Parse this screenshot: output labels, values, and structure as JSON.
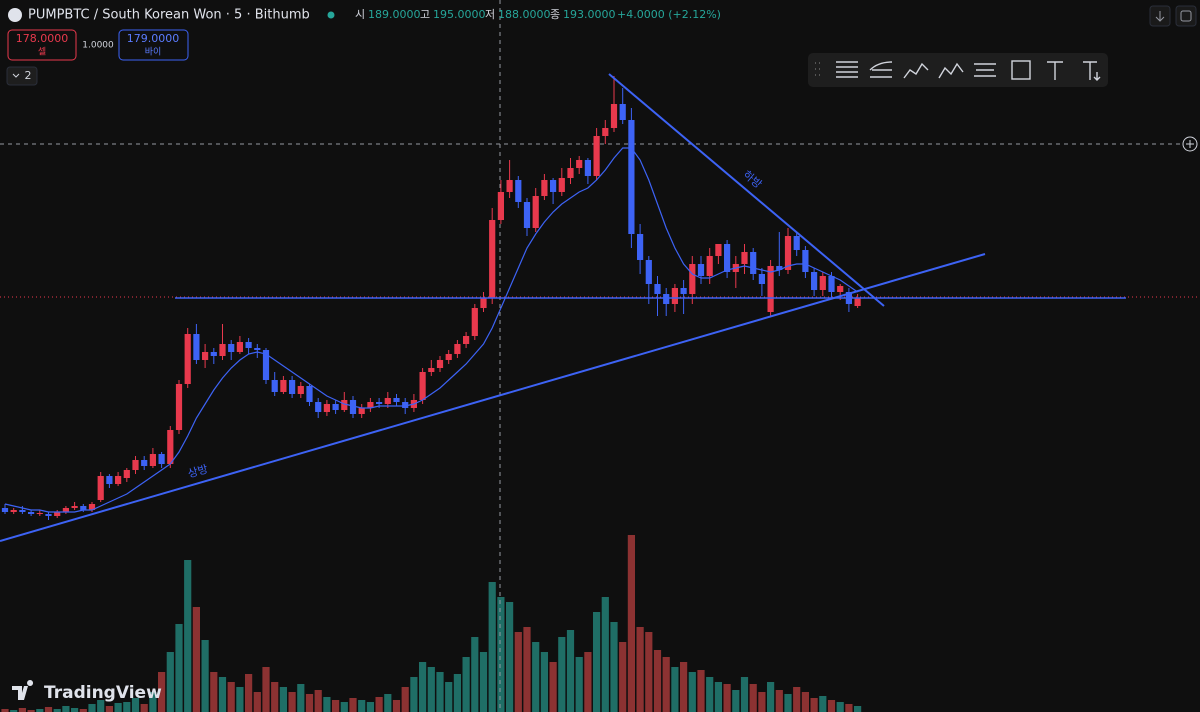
{
  "chart_data": {
    "type": "candlestick",
    "title": "PUMPBTC / South Korean Won · 5 · Bithumb",
    "legend": {
      "open_label": "시",
      "open": "189.0000",
      "high_label": "고",
      "high": "195.0000",
      "low_label": "저",
      "low": "188.0000",
      "close_label": "종",
      "close": "193.0000",
      "change": "+4.0000 (+2.12%)"
    },
    "sell": {
      "price": "178.0000",
      "label": "셀"
    },
    "spread": "1.0000",
    "buy": {
      "price": "179.0000",
      "label": "바이"
    },
    "indicators_count": "2",
    "drawings": {
      "support_label": "상방",
      "resistance_label": "하방"
    },
    "watermark": "TradingView",
    "up_color": "#e8394d",
    "down_color": "#3d63f5",
    "volume_up_color": "#1f6e66",
    "volume_down_color": "#8c3232",
    "ma_color": "#3d63f5",
    "ylim": [
      -14,
      342
    ],
    "y2lim": [
      0,
      200
    ],
    "ohlc": [
      [
        88,
        90,
        85,
        86
      ],
      [
        86,
        88,
        85,
        87
      ],
      [
        87,
        89,
        85,
        86
      ],
      [
        86,
        87,
        84,
        85
      ],
      [
        85,
        87,
        84,
        85.5
      ],
      [
        85,
        86,
        82,
        84
      ],
      [
        84,
        87,
        83,
        86
      ],
      [
        86,
        89,
        85,
        88
      ],
      [
        88,
        91,
        87,
        89
      ],
      [
        89,
        90,
        86,
        87
      ],
      [
        87,
        91,
        86,
        90
      ],
      [
        92,
        106,
        91,
        104
      ],
      [
        104,
        105,
        98,
        100
      ],
      [
        100,
        106,
        99,
        104
      ],
      [
        103,
        108,
        101,
        107
      ],
      [
        107,
        114,
        105,
        112
      ],
      [
        112,
        114,
        107,
        109
      ],
      [
        109,
        118,
        108,
        115
      ],
      [
        115,
        116,
        108,
        110
      ],
      [
        110,
        129,
        108,
        127
      ],
      [
        127,
        152,
        125,
        150
      ],
      [
        150,
        178,
        148,
        175
      ],
      [
        175,
        180,
        160,
        162
      ],
      [
        162,
        170,
        158,
        166
      ],
      [
        166,
        168,
        160,
        164
      ],
      [
        164,
        180,
        162,
        170
      ],
      [
        170,
        172,
        162,
        166
      ],
      [
        166,
        174,
        165,
        171
      ],
      [
        171,
        173,
        165,
        168
      ],
      [
        168,
        170,
        163,
        167
      ],
      [
        167,
        168,
        150,
        152
      ],
      [
        152,
        156,
        144,
        146
      ],
      [
        146,
        154,
        145,
        152
      ],
      [
        152,
        154,
        143,
        145
      ],
      [
        145,
        151,
        143,
        149
      ],
      [
        149,
        150,
        139,
        141
      ],
      [
        141,
        143,
        133,
        136
      ],
      [
        136,
        142,
        134,
        140
      ],
      [
        140,
        142,
        135,
        137
      ],
      [
        137,
        146,
        136,
        142
      ],
      [
        142,
        144,
        133,
        135
      ],
      [
        135,
        140,
        133,
        138
      ],
      [
        138,
        143,
        136,
        141
      ],
      [
        141,
        143,
        138,
        140
      ],
      [
        140,
        146,
        138,
        143
      ],
      [
        143,
        145,
        139,
        141
      ],
      [
        141,
        143,
        135,
        138
      ],
      [
        138,
        145,
        136,
        142
      ],
      [
        142,
        158,
        140,
        156
      ],
      [
        156,
        162,
        154,
        158
      ],
      [
        158,
        164,
        156,
        162
      ],
      [
        162,
        167,
        160,
        165
      ],
      [
        165,
        172,
        163,
        170
      ],
      [
        170,
        176,
        168,
        174
      ],
      [
        174,
        190,
        172,
        188
      ],
      [
        188,
        196,
        186,
        193
      ],
      [
        193,
        238,
        190,
        232
      ],
      [
        232,
        252,
        230,
        246
      ],
      [
        246,
        262,
        243,
        252
      ],
      [
        252,
        254,
        238,
        241
      ],
      [
        241,
        243,
        224,
        228
      ],
      [
        228,
        248,
        226,
        244
      ],
      [
        244,
        255,
        242,
        252
      ],
      [
        252,
        253,
        240,
        246
      ],
      [
        246,
        258,
        244,
        253
      ],
      [
        253,
        263,
        250,
        258
      ],
      [
        258,
        264,
        255,
        262
      ],
      [
        262,
        263,
        250,
        254
      ],
      [
        254,
        278,
        252,
        274
      ],
      [
        274,
        282,
        270,
        278
      ],
      [
        278,
        304,
        276,
        290
      ],
      [
        290,
        298,
        280,
        282
      ],
      [
        282,
        288,
        218,
        225
      ],
      [
        225,
        230,
        205,
        212
      ],
      [
        212,
        214,
        190,
        200
      ],
      [
        200,
        204,
        184,
        195
      ],
      [
        195,
        198,
        184,
        190
      ],
      [
        190,
        200,
        186,
        198
      ],
      [
        198,
        202,
        185,
        195
      ],
      [
        195,
        214,
        190,
        210
      ],
      [
        210,
        214,
        200,
        204
      ],
      [
        204,
        218,
        200,
        214
      ],
      [
        214,
        220,
        210,
        220
      ],
      [
        220,
        222,
        203,
        206
      ],
      [
        206,
        214,
        198,
        210
      ],
      [
        210,
        220,
        205,
        216
      ],
      [
        216,
        218,
        202,
        205
      ],
      [
        205,
        208,
        194,
        200
      ],
      [
        186,
        212,
        184,
        209
      ],
      [
        209,
        226,
        204,
        207
      ],
      [
        207,
        228,
        205,
        224
      ],
      [
        224,
        226,
        214,
        217
      ],
      [
        217,
        219,
        203,
        206
      ],
      [
        206,
        208,
        194,
        197
      ],
      [
        197,
        206,
        194,
        204
      ],
      [
        204,
        206,
        193,
        196
      ],
      [
        196,
        200,
        192,
        199
      ],
      [
        196,
        198,
        186,
        190
      ],
      [
        189,
        195,
        188,
        193
      ]
    ],
    "volume": [
      3,
      2,
      4,
      2,
      3,
      5,
      3,
      6,
      4,
      3,
      8,
      12,
      6,
      9,
      10,
      14,
      8,
      20,
      40,
      60,
      88,
      152,
      105,
      72,
      40,
      35,
      30,
      25,
      38,
      20,
      45,
      30,
      25,
      20,
      28,
      18,
      22,
      15,
      12,
      10,
      14,
      12,
      10,
      15,
      18,
      12,
      25,
      35,
      50,
      45,
      40,
      30,
      38,
      55,
      75,
      60,
      130,
      115,
      110,
      80,
      85,
      70,
      60,
      50,
      75,
      82,
      55,
      60,
      100,
      115,
      90,
      70,
      177,
      85,
      80,
      62,
      55,
      45,
      50,
      40,
      42,
      35,
      30,
      28,
      22,
      35,
      28,
      20,
      30,
      22,
      18,
      25,
      20,
      14,
      16,
      12,
      10,
      8,
      6
    ],
    "ma": [
      90,
      89,
      88,
      87,
      87,
      86,
      86,
      86,
      86,
      87,
      87,
      89,
      91,
      93,
      95,
      98,
      101,
      104,
      107,
      110,
      116,
      124,
      133,
      140,
      147,
      153,
      158,
      162,
      165,
      166,
      165,
      162,
      159,
      156,
      153,
      150,
      147,
      144,
      142,
      140,
      139,
      138,
      138,
      139,
      139,
      139,
      139,
      140,
      142,
      145,
      148,
      152,
      156,
      160,
      165,
      170,
      178,
      188,
      198,
      208,
      218,
      225,
      231,
      236,
      240,
      243,
      246,
      248,
      252,
      257,
      263,
      268,
      268,
      262,
      252,
      240,
      228,
      218,
      210,
      205,
      203,
      203,
      205,
      207,
      208,
      209,
      208,
      207,
      206,
      207,
      209,
      210,
      210,
      208,
      206,
      204,
      202,
      199,
      196
    ]
  }
}
